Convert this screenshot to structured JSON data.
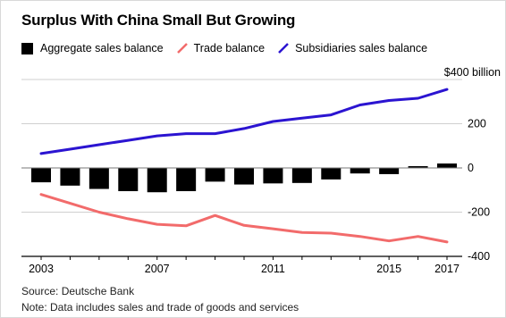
{
  "chart_data": {
    "type": "bar+line",
    "title": "Surplus With China Small But Growing",
    "x": [
      2003,
      2004,
      2005,
      2006,
      2007,
      2008,
      2009,
      2010,
      2011,
      2012,
      2013,
      2014,
      2015,
      2016,
      2017
    ],
    "xticks": [
      "2003",
      "2007",
      "2011",
      "2015",
      "2017"
    ],
    "ylim": [
      -400,
      400
    ],
    "yticks": [
      "$400 billion",
      "200",
      "0",
      "-200",
      "-400"
    ],
    "grid": true,
    "legend_placement": "top",
    "series": [
      {
        "name": "Aggregate sales balance",
        "kind": "bar",
        "color": "#000000",
        "values": [
          -65,
          -80,
          -95,
          -105,
          -110,
          -105,
          -62,
          -75,
          -70,
          -68,
          -52,
          -25,
          -28,
          8,
          20
        ]
      },
      {
        "name": "Trade balance",
        "kind": "line",
        "color": "#f26b6b",
        "values": [
          -120,
          -160,
          -200,
          -230,
          -255,
          -262,
          -215,
          -260,
          -275,
          -292,
          -295,
          -310,
          -330,
          -310,
          -335
        ]
      },
      {
        "name": "Subsidiaries sales balance",
        "kind": "line",
        "color": "#2b14d1",
        "values": [
          65,
          85,
          105,
          125,
          145,
          155,
          155,
          178,
          210,
          225,
          240,
          285,
          305,
          315,
          355
        ]
      }
    ]
  },
  "footer": {
    "source": "Source: Deutsche Bank",
    "note": "Note: Data includes sales and trade of goods and services"
  }
}
